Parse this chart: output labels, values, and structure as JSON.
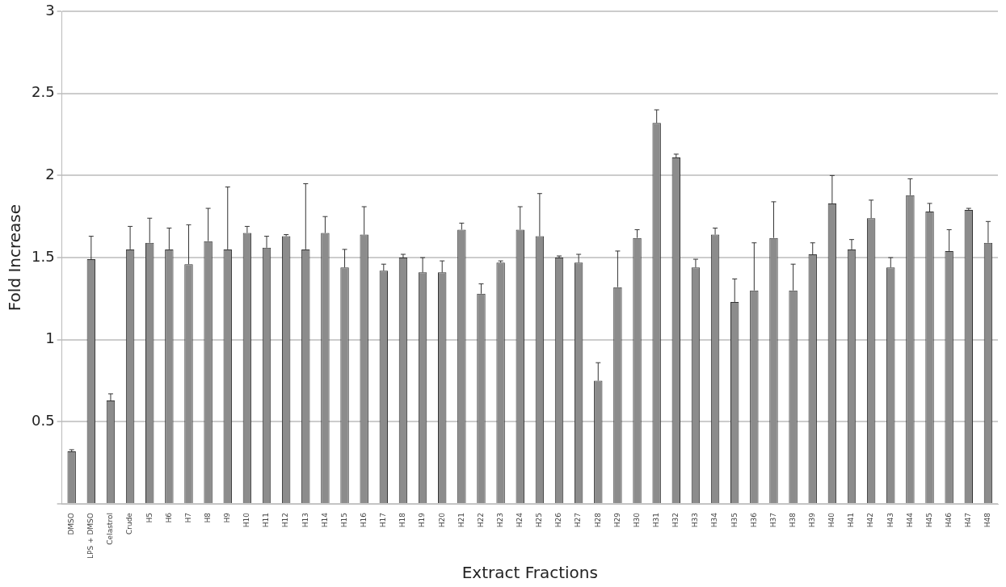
{
  "chart_data": {
    "type": "bar",
    "xlabel": "Extract Fractions",
    "ylabel": "Fold Increase",
    "categories": [
      "DMSO",
      "LPS + DMSO",
      "Celastrol",
      "Crude",
      "H5",
      "H6",
      "H7",
      "H8",
      "H9",
      "H10",
      "H11",
      "H12",
      "H13",
      "H14",
      "H15",
      "H16",
      "H17",
      "H18",
      "H19",
      "H20",
      "H21",
      "H22",
      "H23",
      "H24",
      "H25",
      "H26",
      "H27",
      "H28",
      "H29",
      "H30",
      "H31",
      "H32",
      "H33",
      "H34",
      "H35",
      "H36",
      "H37",
      "H38",
      "H39",
      "H40",
      "H41",
      "H42",
      "H43",
      "H44",
      "H45",
      "H46",
      "H47",
      "H48"
    ],
    "values": [
      0.32,
      1.49,
      0.63,
      1.55,
      1.59,
      1.55,
      1.46,
      1.6,
      1.55,
      1.65,
      1.56,
      1.63,
      1.55,
      1.65,
      1.44,
      1.64,
      1.42,
      1.5,
      1.41,
      1.41,
      1.67,
      1.28,
      1.47,
      1.67,
      1.63,
      1.5,
      1.47,
      0.75,
      1.32,
      1.62,
      2.32,
      2.11,
      1.44,
      1.64,
      1.23,
      1.3,
      1.62,
      1.3,
      1.52,
      1.83,
      1.55,
      1.74,
      1.44,
      1.88,
      1.78,
      1.54,
      1.79,
      1.59
    ],
    "errors": [
      [
        0.32,
        0.33
      ],
      [
        1.49,
        1.63
      ],
      [
        0.63,
        0.67
      ],
      [
        1.55,
        1.69
      ],
      [
        1.59,
        1.74
      ],
      [
        1.55,
        1.68
      ],
      [
        1.46,
        1.7
      ],
      [
        1.6,
        1.8
      ],
      [
        1.55,
        1.93
      ],
      [
        1.65,
        1.69
      ],
      [
        1.56,
        1.63
      ],
      [
        1.63,
        1.64
      ],
      [
        1.55,
        1.95
      ],
      [
        1.65,
        1.75
      ],
      [
        1.44,
        1.55
      ],
      [
        1.64,
        1.81
      ],
      [
        1.42,
        1.46
      ],
      [
        1.5,
        1.52
      ],
      [
        1.41,
        1.5
      ],
      [
        1.41,
        1.48
      ],
      [
        1.67,
        1.71
      ],
      [
        1.28,
        1.34
      ],
      [
        1.47,
        1.48
      ],
      [
        1.67,
        1.81
      ],
      [
        1.63,
        1.89
      ],
      [
        1.5,
        1.51
      ],
      [
        1.47,
        1.52
      ],
      [
        0.75,
        0.86
      ],
      [
        1.32,
        1.54
      ],
      [
        1.62,
        1.67
      ],
      [
        2.32,
        2.4
      ],
      [
        2.11,
        2.13
      ],
      [
        1.44,
        1.49
      ],
      [
        1.64,
        1.68
      ],
      [
        1.23,
        1.37
      ],
      [
        1.3,
        1.59
      ],
      [
        1.62,
        1.84
      ],
      [
        1.3,
        1.46
      ],
      [
        1.52,
        1.59
      ],
      [
        1.83,
        2.0
      ],
      [
        1.55,
        1.61
      ],
      [
        1.74,
        1.85
      ],
      [
        1.44,
        1.5
      ],
      [
        1.88,
        1.98
      ],
      [
        1.78,
        1.83
      ],
      [
        1.54,
        1.67
      ],
      [
        1.79,
        1.8
      ],
      [
        1.59,
        1.72
      ]
    ],
    "color": "#8c8c8c",
    "ylim": [
      0,
      3
    ],
    "yticks": [
      {
        "value": 0,
        "label": null
      },
      0.5,
      1,
      1.5,
      2,
      2.5,
      3
    ],
    "grid": "y"
  }
}
